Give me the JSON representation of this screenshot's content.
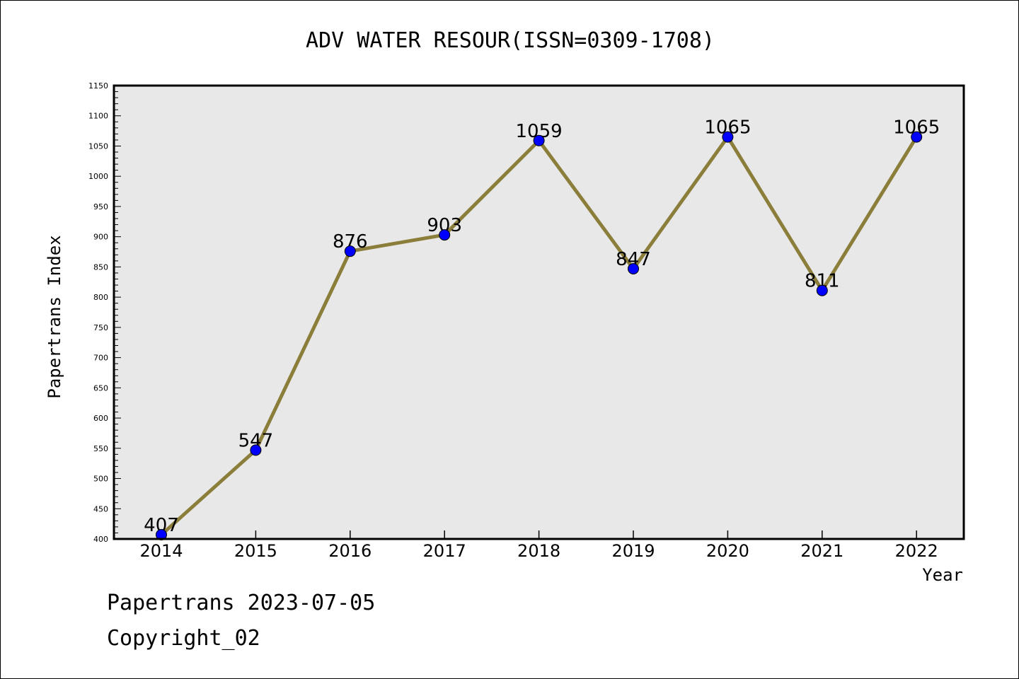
{
  "footer": {
    "line1": "Papertrans 2023-07-05",
    "line2": "Copyright_02"
  },
  "colors": {
    "plot_background": "#e8e8e8",
    "line": "#8b7d3a",
    "marker": "#0000ff",
    "axis": "#000000"
  },
  "chart_data": {
    "type": "line",
    "title": "ADV WATER RESOUR(ISSN=0309-1708)",
    "xlabel": "Year",
    "ylabel": "Papertrans Index",
    "categories": [
      "2014",
      "2015",
      "2016",
      "2017",
      "2018",
      "2019",
      "2020",
      "2021",
      "2022"
    ],
    "series": [
      {
        "values": [
          407,
          547,
          876,
          903,
          1059,
          847,
          1065,
          811,
          1065
        ]
      }
    ],
    "data_labels": [
      "407",
      "547",
      "876",
      "903",
      "1059",
      "847",
      "1065",
      "811",
      "1065"
    ],
    "ylim": [
      400,
      1150
    ],
    "yticks": [
      400,
      450,
      500,
      550,
      600,
      650,
      700,
      750,
      800,
      850,
      900,
      950,
      1000,
      1050,
      1100,
      1150
    ],
    "yticklabels": [
      "400",
      "450",
      "500",
      "550",
      "600",
      "650",
      "700",
      "750",
      "800",
      "850",
      "900",
      "950",
      "1000",
      "1050",
      "1100",
      "1150"
    ],
    "grid": false,
    "legend": "none"
  }
}
